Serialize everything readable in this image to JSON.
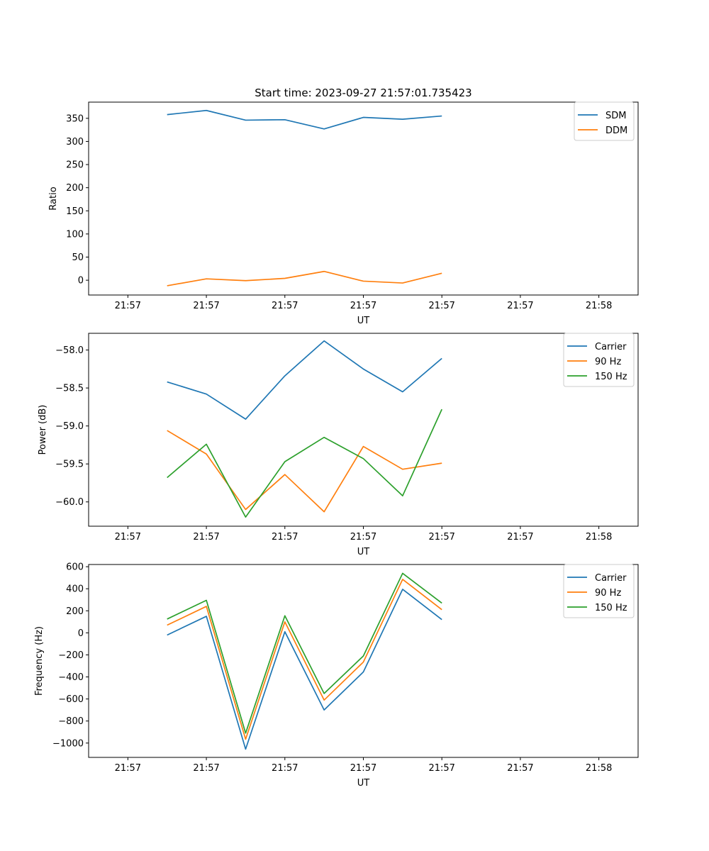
{
  "chart_data": [
    {
      "type": "line",
      "title": "Start time: 2023-09-27 21:57:01.735423",
      "xlabel": "UT",
      "ylabel": "Ratio",
      "xlim": [
        0,
        14
      ],
      "ylim": [
        -32,
        385
      ],
      "x": [
        2,
        3,
        4,
        5,
        6,
        7,
        8,
        9
      ],
      "x_ticks": [
        1,
        3,
        5,
        7,
        9,
        11,
        13
      ],
      "x_tick_labels": [
        "21:57",
        "21:57",
        "21:57",
        "21:57",
        "21:57",
        "21:57",
        "21:58"
      ],
      "y_ticks": [
        0,
        50,
        100,
        150,
        200,
        250,
        300,
        350
      ],
      "y_tick_labels": [
        "0",
        "50",
        "100",
        "150",
        "200",
        "250",
        "300",
        "350"
      ],
      "legend_position": "top-right",
      "series": [
        {
          "name": "SDM",
          "color": "#1f77b4",
          "values": [
            358,
            367,
            346,
            347,
            327,
            352,
            348,
            355
          ]
        },
        {
          "name": "DDM",
          "color": "#ff7f0e",
          "values": [
            -12,
            3,
            -1,
            4,
            19,
            -2,
            -6,
            15
          ]
        }
      ]
    },
    {
      "type": "line",
      "title": "",
      "xlabel": "UT",
      "ylabel": "Power (dB)",
      "xlim": [
        0,
        14
      ],
      "ylim": [
        -60.32,
        -57.78
      ],
      "x": [
        2,
        3,
        4,
        5,
        6,
        7,
        8,
        9
      ],
      "x_ticks": [
        1,
        3,
        5,
        7,
        9,
        11,
        13
      ],
      "x_tick_labels": [
        "21:57",
        "21:57",
        "21:57",
        "21:57",
        "21:57",
        "21:57",
        "21:58"
      ],
      "y_ticks": [
        -60.0,
        -59.5,
        -59.0,
        -58.5,
        -58.0
      ],
      "y_tick_labels": [
        "−60.0",
        "−59.5",
        "−59.0",
        "−58.5",
        "−58.0"
      ],
      "legend_position": "top-right",
      "series": [
        {
          "name": "Carrier",
          "color": "#1f77b4",
          "values": [
            -58.42,
            -58.58,
            -58.91,
            -58.34,
            -57.88,
            -58.25,
            -58.55,
            -58.11
          ]
        },
        {
          "name": "90 Hz",
          "color": "#ff7f0e",
          "values": [
            -59.06,
            -59.37,
            -60.1,
            -59.64,
            -60.13,
            -59.27,
            -59.57,
            -59.49
          ]
        },
        {
          "name": "150 Hz",
          "color": "#2ca02c",
          "values": [
            -59.68,
            -59.24,
            -60.2,
            -59.47,
            -59.15,
            -59.43,
            -59.92,
            -58.78
          ]
        }
      ]
    },
    {
      "type": "line",
      "title": "",
      "xlabel": "UT",
      "ylabel": "Frequency (Hz)",
      "xlim": [
        0,
        14
      ],
      "ylim": [
        -1130,
        620
      ],
      "x": [
        2,
        3,
        4,
        5,
        6,
        7,
        8,
        9
      ],
      "x_ticks": [
        1,
        3,
        5,
        7,
        9,
        11,
        13
      ],
      "x_tick_labels": [
        "21:57",
        "21:57",
        "21:57",
        "21:57",
        "21:57",
        "21:57",
        "21:58"
      ],
      "y_ticks": [
        -1000,
        -800,
        -600,
        -400,
        -200,
        0,
        200,
        400,
        600
      ],
      "y_tick_labels": [
        "−1000",
        "−800",
        "−600",
        "−400",
        "−200",
        "0",
        "200",
        "400",
        "600"
      ],
      "legend_position": "top-right",
      "series": [
        {
          "name": "Carrier",
          "color": "#1f77b4",
          "values": [
            -20,
            150,
            -1055,
            10,
            -700,
            -355,
            395,
            120
          ]
        },
        {
          "name": "90 Hz",
          "color": "#ff7f0e",
          "values": [
            70,
            240,
            -965,
            100,
            -610,
            -265,
            485,
            210
          ]
        },
        {
          "name": "150 Hz",
          "color": "#2ca02c",
          "values": [
            125,
            295,
            -910,
            155,
            -550,
            -210,
            540,
            270
          ]
        }
      ]
    }
  ]
}
